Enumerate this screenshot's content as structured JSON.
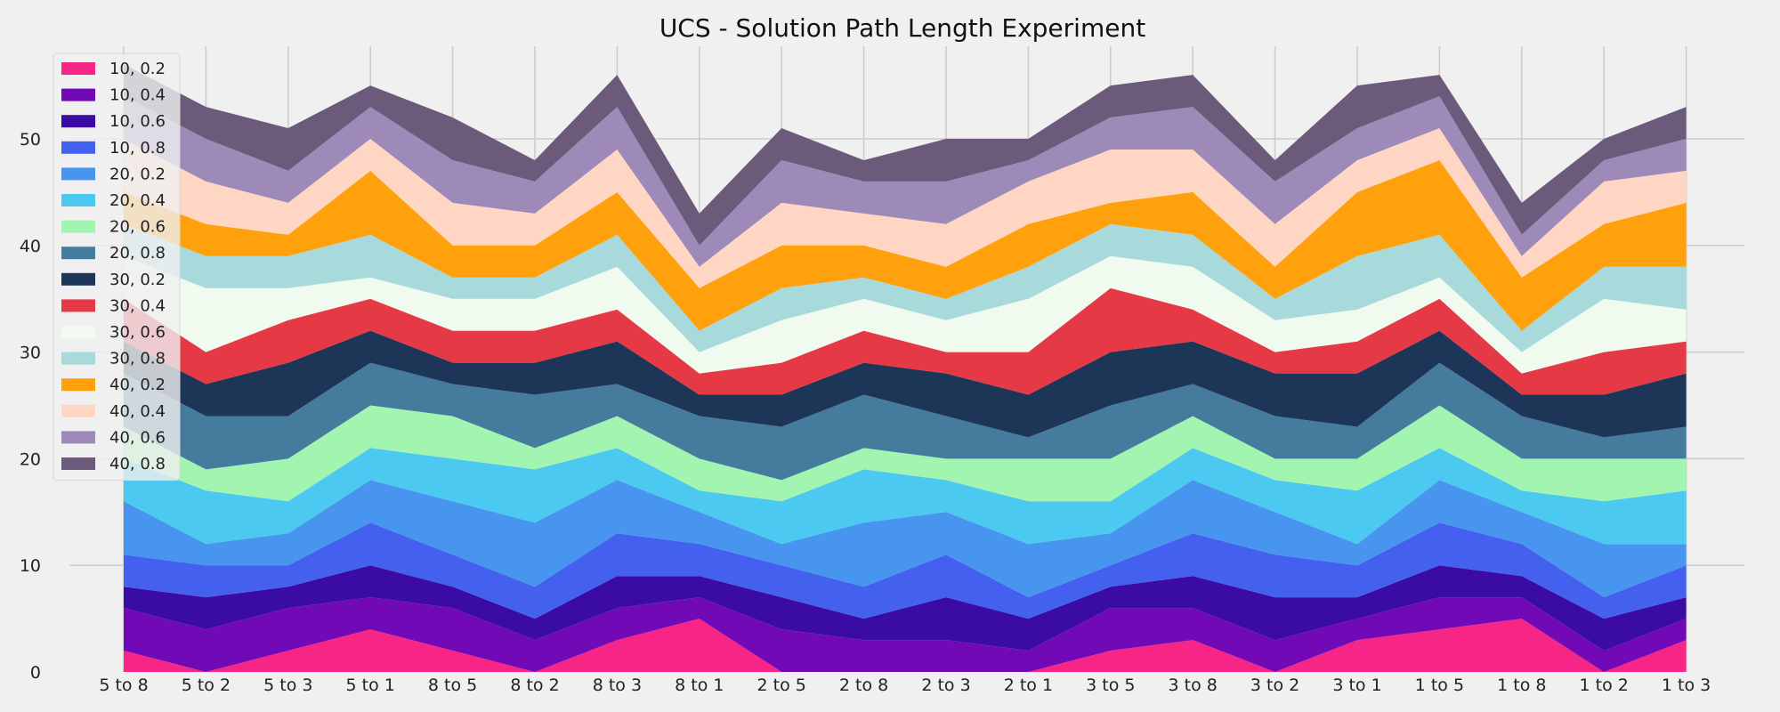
{
  "chart_data": {
    "type": "area",
    "title": "UCS - Solution Path Length Experiment",
    "xlabel": "",
    "ylabel": "",
    "ylim": [
      0,
      58
    ],
    "yticks": [
      0,
      10,
      20,
      30,
      40,
      50
    ],
    "grid": true,
    "legend_position": "top-left",
    "categories": [
      "5 to 8",
      "5 to 2",
      "5 to 3",
      "5 to 1",
      "8 to 5",
      "8 to 2",
      "8 to 3",
      "8 to 1",
      "2 to 5",
      "2 to 8",
      "2 to 3",
      "2 to 1",
      "3 to 5",
      "3 to 8",
      "3 to 2",
      "3 to 1",
      "1 to 5",
      "1 to 8",
      "1 to 2",
      "1 to 3"
    ],
    "series": [
      {
        "name": "10, 0.2",
        "color": "#f72585",
        "values": [
          2,
          0,
          2,
          4,
          2,
          0,
          3,
          5,
          0,
          0,
          0,
          0,
          2,
          3,
          0,
          3,
          4,
          5,
          0,
          3
        ]
      },
      {
        "name": "10, 0.4",
        "color": "#7209b7",
        "values": [
          4,
          4,
          4,
          3,
          4,
          3,
          3,
          2,
          4,
          3,
          3,
          2,
          4,
          3,
          3,
          2,
          3,
          2,
          2,
          2
        ]
      },
      {
        "name": "10, 0.6",
        "color": "#3a0ca3",
        "values": [
          2,
          3,
          2,
          3,
          2,
          2,
          3,
          2,
          3,
          2,
          4,
          3,
          2,
          3,
          4,
          2,
          3,
          2,
          3,
          2
        ]
      },
      {
        "name": "10, 0.8",
        "color": "#4361ee",
        "values": [
          3,
          3,
          2,
          4,
          3,
          3,
          4,
          3,
          3,
          3,
          4,
          2,
          2,
          4,
          4,
          3,
          4,
          3,
          2,
          3
        ]
      },
      {
        "name": "20, 0.2",
        "color": "#4895ef",
        "values": [
          5,
          2,
          3,
          4,
          5,
          6,
          5,
          3,
          2,
          6,
          4,
          5,
          3,
          5,
          4,
          2,
          4,
          3,
          5,
          2
        ]
      },
      {
        "name": "20, 0.4",
        "color": "#4cc9f0",
        "values": [
          4,
          5,
          3,
          3,
          4,
          5,
          3,
          2,
          4,
          5,
          3,
          4,
          3,
          3,
          3,
          5,
          3,
          2,
          4,
          5
        ]
      },
      {
        "name": "20, 0.6",
        "color": "#a2f5b0",
        "values": [
          3,
          2,
          4,
          4,
          4,
          2,
          3,
          3,
          2,
          2,
          2,
          4,
          4,
          3,
          2,
          3,
          4,
          3,
          4,
          3
        ]
      },
      {
        "name": "20, 0.8",
        "color": "#457b9d",
        "values": [
          5,
          5,
          4,
          4,
          3,
          5,
          3,
          4,
          5,
          5,
          4,
          2,
          5,
          3,
          4,
          3,
          4,
          4,
          2,
          3
        ]
      },
      {
        "name": "30, 0.2",
        "color": "#1d3557",
        "values": [
          3,
          3,
          5,
          3,
          2,
          3,
          4,
          2,
          3,
          3,
          4,
          4,
          5,
          4,
          4,
          5,
          3,
          2,
          4,
          5
        ]
      },
      {
        "name": "30, 0.4",
        "color": "#e63946",
        "values": [
          4,
          3,
          4,
          3,
          3,
          3,
          3,
          2,
          3,
          3,
          2,
          4,
          6,
          3,
          2,
          3,
          3,
          2,
          4,
          3
        ]
      },
      {
        "name": "30, 0.6",
        "color": "#f1faee",
        "values": [
          4,
          6,
          3,
          2,
          3,
          3,
          4,
          2,
          4,
          3,
          3,
          5,
          3,
          4,
          3,
          3,
          2,
          2,
          5,
          3
        ]
      },
      {
        "name": "30, 0.8",
        "color": "#a8dadc",
        "values": [
          3,
          3,
          3,
          4,
          2,
          2,
          3,
          2,
          3,
          2,
          2,
          3,
          3,
          3,
          2,
          5,
          4,
          2,
          3,
          4
        ]
      },
      {
        "name": "40, 0.2",
        "color": "#ffa10c",
        "values": [
          3,
          3,
          2,
          6,
          3,
          3,
          4,
          4,
          4,
          3,
          3,
          4,
          2,
          4,
          3,
          6,
          7,
          5,
          4,
          6
        ]
      },
      {
        "name": "40, 0.4",
        "color": "#ffd6c4",
        "values": [
          5,
          4,
          3,
          3,
          4,
          3,
          4,
          2,
          4,
          3,
          4,
          4,
          5,
          4,
          4,
          3,
          3,
          2,
          4,
          3
        ]
      },
      {
        "name": "40, 0.6",
        "color": "#9d8ab9",
        "values": [
          4,
          4,
          3,
          3,
          4,
          3,
          4,
          2,
          4,
          3,
          4,
          2,
          3,
          4,
          4,
          3,
          3,
          2,
          2,
          3
        ]
      },
      {
        "name": "40, 0.8",
        "color": "#6c5a7b",
        "values": [
          3,
          3,
          4,
          2,
          4,
          2,
          3,
          3,
          3,
          2,
          4,
          2,
          3,
          3,
          2,
          4,
          2,
          3,
          2,
          3
        ]
      }
    ]
  }
}
